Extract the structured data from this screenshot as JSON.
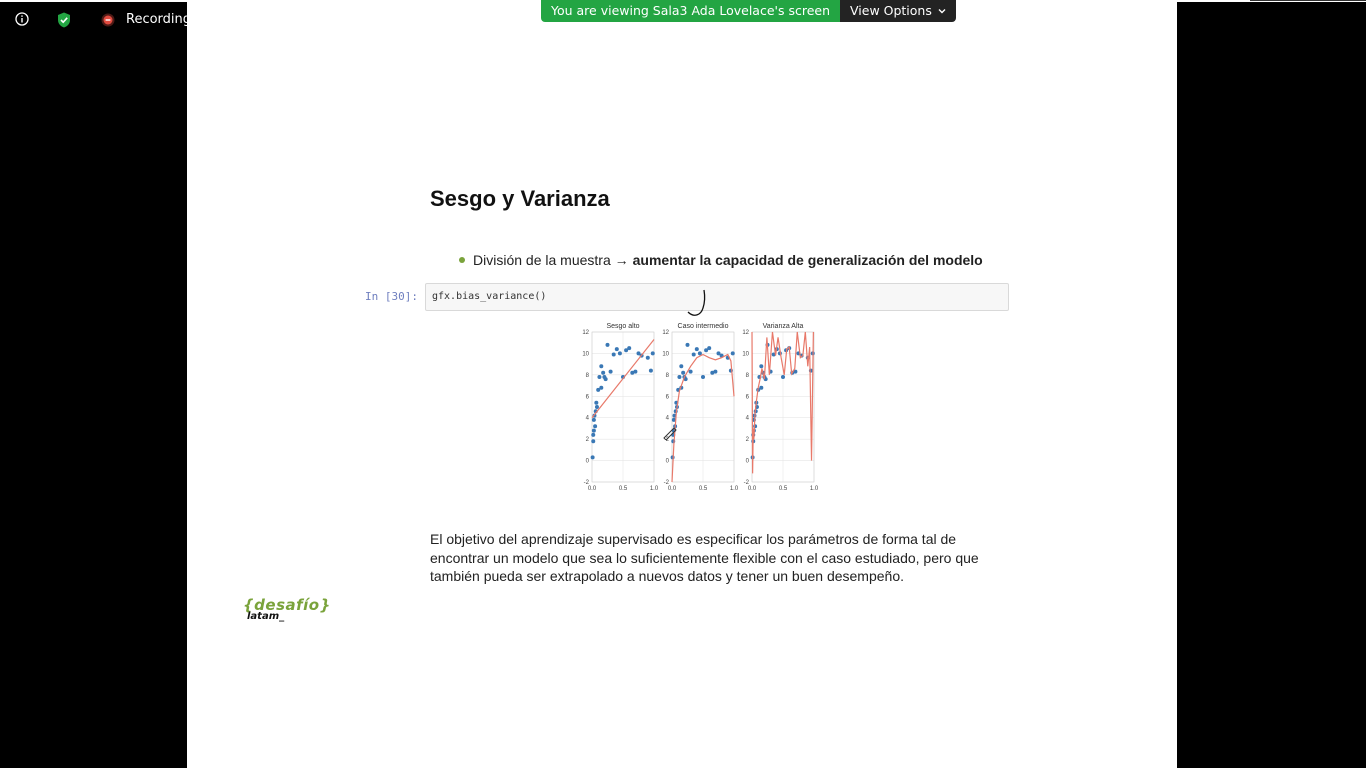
{
  "zoom_bar": {
    "recording_label": "Recording"
  },
  "banner": {
    "viewing_text": "You are viewing Sala3 Ada Lovelace's screen",
    "view_options_label": "View Options"
  },
  "notebook": {
    "title": "Sesgo y Varianza",
    "bullet_prefix": "División de la muestra →",
    "bullet_bold": "aumentar la capacidad de generalización del modelo",
    "in_prompt": "In [30]:",
    "code": "gfx.bias_variance()",
    "paragraph": "El objetivo del aprendizaje supervisado es especificar los parámetros de forma tal de encontrar un modelo que sea lo suficientemente flexible con el caso estudiado, pero que también pueda ser extrapolado a nuevos datos y tener un buen desempeño."
  },
  "logo": {
    "top": "{desafío}",
    "bottom": "latam_"
  },
  "colors": {
    "banner_green": "#23a543",
    "accent_green": "#7aa33b",
    "point_blue": "#3a78b5",
    "fit_red": "#e8796a"
  },
  "chart_data": [
    {
      "type": "scatter",
      "title": "Sesgo alto",
      "xlim": [
        0,
        1
      ],
      "ylim": [
        -2,
        12
      ],
      "x_ticks": [
        "0.0",
        "0.5",
        "1.0"
      ],
      "y_ticks": [
        "-2",
        "0",
        "2",
        "4",
        "6",
        "8",
        "10",
        "12"
      ],
      "fit": "line",
      "points": [
        [
          0.01,
          0.3
        ],
        [
          0.02,
          2.4
        ],
        [
          0.02,
          1.8
        ],
        [
          0.03,
          2.8
        ],
        [
          0.03,
          3.8
        ],
        [
          0.04,
          4.2
        ],
        [
          0.05,
          3.2
        ],
        [
          0.06,
          4.6
        ],
        [
          0.07,
          5.4
        ],
        [
          0.08,
          5.0
        ],
        [
          0.1,
          6.6
        ],
        [
          0.12,
          7.8
        ],
        [
          0.15,
          6.8
        ],
        [
          0.15,
          8.8
        ],
        [
          0.18,
          8.2
        ],
        [
          0.2,
          7.8
        ],
        [
          0.22,
          7.6
        ],
        [
          0.25,
          10.8
        ],
        [
          0.3,
          8.3
        ],
        [
          0.35,
          9.9
        ],
        [
          0.4,
          10.4
        ],
        [
          0.45,
          10.0
        ],
        [
          0.5,
          7.8
        ],
        [
          0.55,
          10.3
        ],
        [
          0.6,
          10.5
        ],
        [
          0.65,
          8.2
        ],
        [
          0.7,
          8.3
        ],
        [
          0.75,
          10.0
        ],
        [
          0.8,
          9.8
        ],
        [
          0.9,
          9.6
        ],
        [
          0.95,
          8.4
        ],
        [
          0.98,
          10.0
        ]
      ],
      "fit_curve": [
        [
          0.0,
          4.0
        ],
        [
          1.0,
          11.3
        ]
      ]
    },
    {
      "type": "scatter",
      "title": "Caso intermedio",
      "xlim": [
        0,
        1
      ],
      "ylim": [
        -2,
        12
      ],
      "x_ticks": [
        "0.0",
        "0.5",
        "1.0"
      ],
      "y_ticks": [
        "-2",
        "0",
        "2",
        "4",
        "6",
        "8",
        "10",
        "12"
      ],
      "fit": "curve",
      "points": [
        [
          0.01,
          0.3
        ],
        [
          0.02,
          2.4
        ],
        [
          0.02,
          1.8
        ],
        [
          0.03,
          2.8
        ],
        [
          0.03,
          3.8
        ],
        [
          0.04,
          4.2
        ],
        [
          0.05,
          3.2
        ],
        [
          0.06,
          4.6
        ],
        [
          0.07,
          5.4
        ],
        [
          0.08,
          5.0
        ],
        [
          0.1,
          6.6
        ],
        [
          0.12,
          7.8
        ],
        [
          0.15,
          6.8
        ],
        [
          0.15,
          8.8
        ],
        [
          0.18,
          8.2
        ],
        [
          0.2,
          7.8
        ],
        [
          0.22,
          7.6
        ],
        [
          0.25,
          10.8
        ],
        [
          0.3,
          8.3
        ],
        [
          0.35,
          9.9
        ],
        [
          0.4,
          10.4
        ],
        [
          0.45,
          10.0
        ],
        [
          0.5,
          7.8
        ],
        [
          0.55,
          10.3
        ],
        [
          0.6,
          10.5
        ],
        [
          0.65,
          8.2
        ],
        [
          0.7,
          8.3
        ],
        [
          0.75,
          10.0
        ],
        [
          0.8,
          9.8
        ],
        [
          0.9,
          9.6
        ],
        [
          0.95,
          8.4
        ],
        [
          0.98,
          10.0
        ]
      ],
      "fit_curve": [
        [
          0.0,
          -2.0
        ],
        [
          0.03,
          1.5
        ],
        [
          0.07,
          4.5
        ],
        [
          0.12,
          6.5
        ],
        [
          0.2,
          7.8
        ],
        [
          0.3,
          8.8
        ],
        [
          0.4,
          9.6
        ],
        [
          0.5,
          9.9
        ],
        [
          0.6,
          9.6
        ],
        [
          0.7,
          9.4
        ],
        [
          0.8,
          9.6
        ],
        [
          0.9,
          9.9
        ],
        [
          0.95,
          9.3
        ],
        [
          1.0,
          6.0
        ]
      ]
    },
    {
      "type": "scatter",
      "title": "Varianza Alta",
      "xlim": [
        0,
        1
      ],
      "ylim": [
        -2,
        12
      ],
      "x_ticks": [
        "0.0",
        "0.5",
        "1.0"
      ],
      "y_ticks": [
        "-2",
        "0",
        "2",
        "4",
        "6",
        "8",
        "10",
        "12"
      ],
      "fit": "overfit",
      "points": [
        [
          0.01,
          0.3
        ],
        [
          0.02,
          2.4
        ],
        [
          0.02,
          1.8
        ],
        [
          0.03,
          2.8
        ],
        [
          0.03,
          3.8
        ],
        [
          0.04,
          4.2
        ],
        [
          0.05,
          3.2
        ],
        [
          0.06,
          4.6
        ],
        [
          0.07,
          5.4
        ],
        [
          0.08,
          5.0
        ],
        [
          0.1,
          6.6
        ],
        [
          0.12,
          7.8
        ],
        [
          0.15,
          6.8
        ],
        [
          0.15,
          8.8
        ],
        [
          0.18,
          8.2
        ],
        [
          0.2,
          7.8
        ],
        [
          0.22,
          7.6
        ],
        [
          0.25,
          10.8
        ],
        [
          0.3,
          8.3
        ],
        [
          0.35,
          9.9
        ],
        [
          0.4,
          10.4
        ],
        [
          0.45,
          10.0
        ],
        [
          0.5,
          7.8
        ],
        [
          0.55,
          10.3
        ],
        [
          0.6,
          10.5
        ],
        [
          0.65,
          8.2
        ],
        [
          0.7,
          8.3
        ],
        [
          0.75,
          10.0
        ],
        [
          0.8,
          9.8
        ],
        [
          0.9,
          9.6
        ],
        [
          0.95,
          8.4
        ],
        [
          0.98,
          10.0
        ]
      ],
      "fit_curve": [
        [
          0.0,
          12
        ],
        [
          0.01,
          -1.2
        ],
        [
          0.02,
          3.0
        ],
        [
          0.03,
          2.0
        ],
        [
          0.05,
          4.5
        ],
        [
          0.07,
          5.5
        ],
        [
          0.1,
          6.8
        ],
        [
          0.13,
          7.6
        ],
        [
          0.16,
          8.6
        ],
        [
          0.2,
          7.6
        ],
        [
          0.24,
          11.5
        ],
        [
          0.28,
          8.0
        ],
        [
          0.33,
          12
        ],
        [
          0.38,
          9.8
        ],
        [
          0.42,
          11.5
        ],
        [
          0.47,
          9.6
        ],
        [
          0.52,
          8.0
        ],
        [
          0.56,
          10.4
        ],
        [
          0.6,
          10.6
        ],
        [
          0.64,
          8.1
        ],
        [
          0.69,
          8.6
        ],
        [
          0.73,
          12
        ],
        [
          0.78,
          9.6
        ],
        [
          0.82,
          9.8
        ],
        [
          0.86,
          12
        ],
        [
          0.9,
          8.8
        ],
        [
          0.93,
          10.6
        ],
        [
          0.96,
          0.0
        ],
        [
          0.99,
          12
        ]
      ]
    }
  ]
}
